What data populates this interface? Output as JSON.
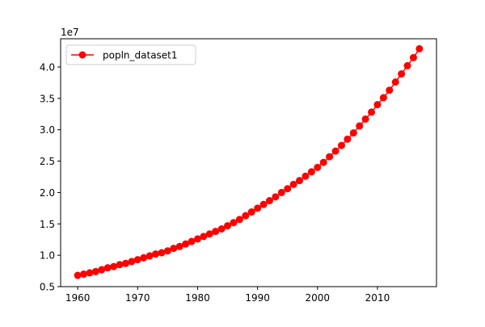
{
  "chart_data": {
    "type": "line",
    "title": "",
    "xlabel": "",
    "ylabel": "",
    "y_offset_label": "1e7",
    "xlim": [
      1957.15,
      2019.85
    ],
    "ylim": [
      0.5,
      4.45
    ],
    "x_ticks": [
      1960,
      1970,
      1980,
      1990,
      2000,
      2010
    ],
    "x_tick_labels": [
      "1960",
      "1970",
      "1980",
      "1990",
      "2000",
      "2010"
    ],
    "y_ticks": [
      0.5,
      1.0,
      1.5,
      2.0,
      2.5,
      3.0,
      3.5,
      4.0
    ],
    "y_tick_labels": [
      "0.5",
      "1.0",
      "1.5",
      "2.0",
      "2.5",
      "3.0",
      "3.5",
      "4.0"
    ],
    "grid": false,
    "legend_position": "upper-left",
    "series": [
      {
        "name": "popln_dataset1",
        "color": "#ff0000",
        "marker": "circle",
        "x": [
          1960,
          1961,
          1962,
          1963,
          1964,
          1965,
          1966,
          1967,
          1968,
          1969,
          1970,
          1971,
          1972,
          1973,
          1974,
          1975,
          1976,
          1977,
          1978,
          1979,
          1980,
          1981,
          1982,
          1983,
          1984,
          1985,
          1986,
          1987,
          1988,
          1989,
          1990,
          1991,
          1992,
          1993,
          1994,
          1995,
          1996,
          1997,
          1998,
          1999,
          2000,
          2001,
          2002,
          2003,
          2004,
          2005,
          2006,
          2007,
          2008,
          2009,
          2010,
          2011,
          2012,
          2013,
          2014,
          2015,
          2016,
          2017
        ],
        "y": [
          0.68,
          0.7,
          0.72,
          0.74,
          0.77,
          0.8,
          0.82,
          0.85,
          0.87,
          0.9,
          0.93,
          0.96,
          0.99,
          1.02,
          1.04,
          1.07,
          1.11,
          1.14,
          1.18,
          1.22,
          1.26,
          1.3,
          1.34,
          1.38,
          1.42,
          1.47,
          1.52,
          1.57,
          1.63,
          1.69,
          1.75,
          1.81,
          1.87,
          1.93,
          2.0,
          2.06,
          2.13,
          2.19,
          2.26,
          2.33,
          2.4,
          2.48,
          2.57,
          2.66,
          2.75,
          2.85,
          2.95,
          3.06,
          3.17,
          3.28,
          3.4,
          3.51,
          3.63,
          3.76,
          3.89,
          4.02,
          4.15,
          4.29
        ]
      }
    ]
  }
}
